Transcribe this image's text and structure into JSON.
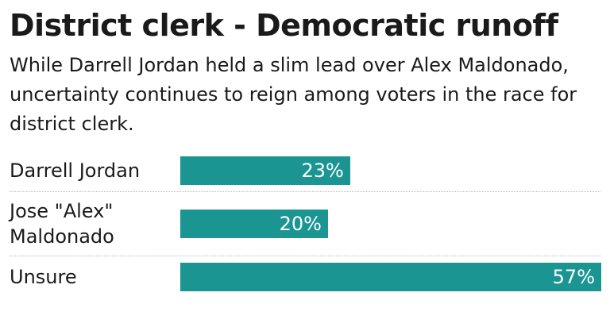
{
  "chart_data": {
    "type": "bar",
    "orientation": "horizontal",
    "title": "District clerk - Democratic runoff",
    "subtitle": "While Darrell Jordan held a slim lead over Alex Maldonado, uncertainty continues to reign among voters in the race for district clerk.",
    "categories": [
      "Darrell Jordan",
      "Jose \"Alex\" Maldonado",
      "Unsure"
    ],
    "values": [
      23,
      20,
      57
    ],
    "value_labels": [
      "23%",
      "20%",
      "57%"
    ],
    "color": "#1a9592"
  }
}
